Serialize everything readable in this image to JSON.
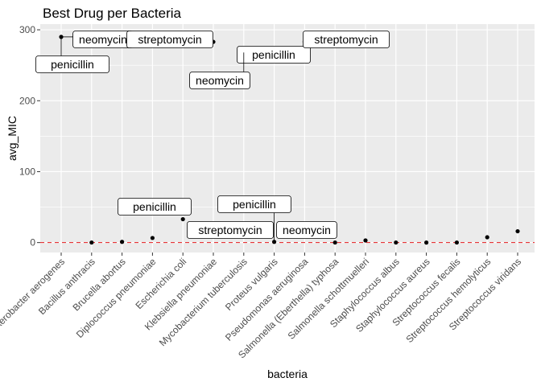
{
  "chart_data": {
    "type": "scatter",
    "title": "Best Drug per Bacteria",
    "xlabel": "bacteria",
    "ylabel": "avg_MIC",
    "ylim": [
      -14,
      308
    ],
    "yticks": [
      0,
      100,
      200,
      300
    ],
    "grid": true,
    "reference_line": {
      "y": 0,
      "color": "#e41a1c",
      "style": "dashed"
    },
    "categories": [
      "Aerobacter aerogenes",
      "Bacillus anthracis",
      "Brucella abortus",
      "Diplococcus pneumoniae",
      "Escherichia coli",
      "Klebsiella pneumoniae",
      "Mycobacterium tuberculosis",
      "Proteus vulgaris",
      "Pseudomonas aeruginosa",
      "Salmonella (Eberthella) typhosa",
      "Salmonella schottmuelleri",
      "Staphylococcus albus",
      "Staphylococcus aureus",
      "Streptococcus fecalis",
      "Streptococcus hemolyticus",
      "Streptococcus viridans"
    ],
    "points": [
      {
        "x": "Aerobacter aerogenes",
        "y": 290
      },
      {
        "x": "Bacillus anthracis",
        "y": 0.1
      },
      {
        "x": "Brucella abortus",
        "y": 1.0
      },
      {
        "x": "Diplococcus pneumoniae",
        "y": 6.5
      },
      {
        "x": "Escherichia coli",
        "y": 33
      },
      {
        "x": "Klebsiella pneumoniae",
        "y": 283
      },
      {
        "x": "Mycobacterium tuberculosis",
        "y": 268
      },
      {
        "x": "Proteus vulgaris",
        "y": 1.0
      },
      {
        "x": "Pseudomonas aeruginosa",
        "y": 283
      },
      {
        "x": "Salmonella (Eberthella) typhosa",
        "y": 0.1
      },
      {
        "x": "Salmonella schottmuelleri",
        "y": 3.0
      },
      {
        "x": "Staphylococcus albus",
        "y": 0.1
      },
      {
        "x": "Staphylococcus aureus",
        "y": 0.05
      },
      {
        "x": "Streptococcus fecalis",
        "y": 0.1
      },
      {
        "x": "Streptococcus hemolyticus",
        "y": 7.5
      },
      {
        "x": "Streptococcus viridans",
        "y": 16
      }
    ],
    "annotations": [
      {
        "text": "neomycin",
        "x": "Aerobacter aerogenes",
        "y": 290
      },
      {
        "text": "penicillin",
        "x": "Aerobacter aerogenes",
        "y": 290
      },
      {
        "text": "streptomycin",
        "x": "Klebsiella pneumoniae",
        "y": 283
      },
      {
        "text": "penicillin",
        "x": "Mycobacterium tuberculosis",
        "y": 268
      },
      {
        "text": "neomycin",
        "x": "Mycobacterium tuberculosis",
        "y": 268
      },
      {
        "text": "streptomycin",
        "x": "Pseudomonas aeruginosa",
        "y": 283
      },
      {
        "text": "penicillin",
        "x": "Escherichia coli",
        "y": 33
      },
      {
        "text": "penicillin",
        "x": "Proteus vulgaris",
        "y": 1.0
      },
      {
        "text": "streptomycin",
        "x": "Proteus vulgaris",
        "y": 1.0
      },
      {
        "text": "neomycin",
        "x": "Salmonella (Eberthella) typhosa",
        "y": 0.1
      }
    ]
  }
}
